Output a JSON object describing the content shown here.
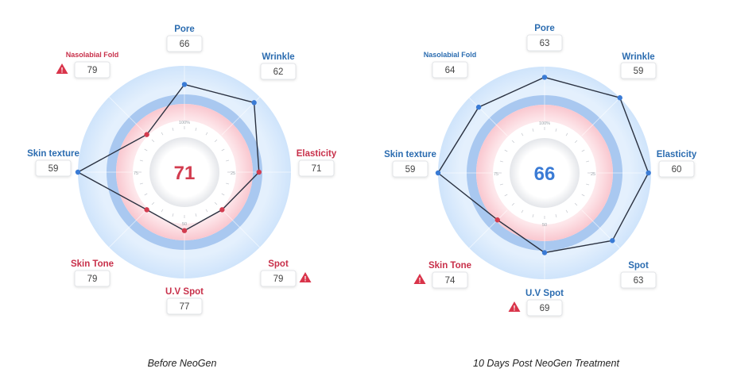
{
  "colors": {
    "blue_label": "#2b6cb0",
    "red_label": "#c8304a",
    "blue_score": "#3a7bd5",
    "red_score": "#d23c4f",
    "line": "#2a3140",
    "warn": "#d9344a"
  },
  "chart_data": [
    {
      "type": "radar",
      "caption": "Before NeoGen",
      "center_score": "71",
      "center_color": "red",
      "inner_ticks": [
        "100%",
        "25",
        "50",
        "75"
      ],
      "axes": [
        {
          "name": "Pore",
          "value": 66,
          "color": "blue",
          "warning": false
        },
        {
          "name": "Wrinkle",
          "value": 62,
          "color": "blue",
          "warning": false
        },
        {
          "name": "Elasticity",
          "value": 71,
          "color": "red",
          "warning": false
        },
        {
          "name": "Spot",
          "value": 79,
          "color": "red",
          "warning": true
        },
        {
          "name": "U.V Spot",
          "value": 77,
          "color": "red",
          "warning": false
        },
        {
          "name": "Skin Tone",
          "value": 79,
          "color": "red",
          "warning": false
        },
        {
          "name": "Skin texture",
          "value": 59,
          "color": "blue",
          "warning": false
        },
        {
          "name": "Nasolabial Fold",
          "value": 79,
          "color": "red",
          "warning": true
        }
      ]
    },
    {
      "type": "radar",
      "caption": "10 Days Post NeoGen Treatment",
      "center_score": "66",
      "center_color": "blue",
      "inner_ticks": [
        "100%",
        "25",
        "50",
        "75"
      ],
      "axes": [
        {
          "name": "Pore",
          "value": 63,
          "color": "blue",
          "warning": false
        },
        {
          "name": "Wrinkle",
          "value": 59,
          "color": "blue",
          "warning": false
        },
        {
          "name": "Elasticity",
          "value": 60,
          "color": "blue",
          "warning": false
        },
        {
          "name": "Spot",
          "value": 63,
          "color": "blue",
          "warning": false
        },
        {
          "name": "U.V Spot",
          "value": 69,
          "color": "blue",
          "warning": true
        },
        {
          "name": "Skin Tone",
          "value": 74,
          "color": "red",
          "warning": true
        },
        {
          "name": "Skin texture",
          "value": 59,
          "color": "blue",
          "warning": false
        },
        {
          "name": "Nasolabial Fold",
          "value": 64,
          "color": "blue",
          "warning": false
        }
      ]
    }
  ]
}
